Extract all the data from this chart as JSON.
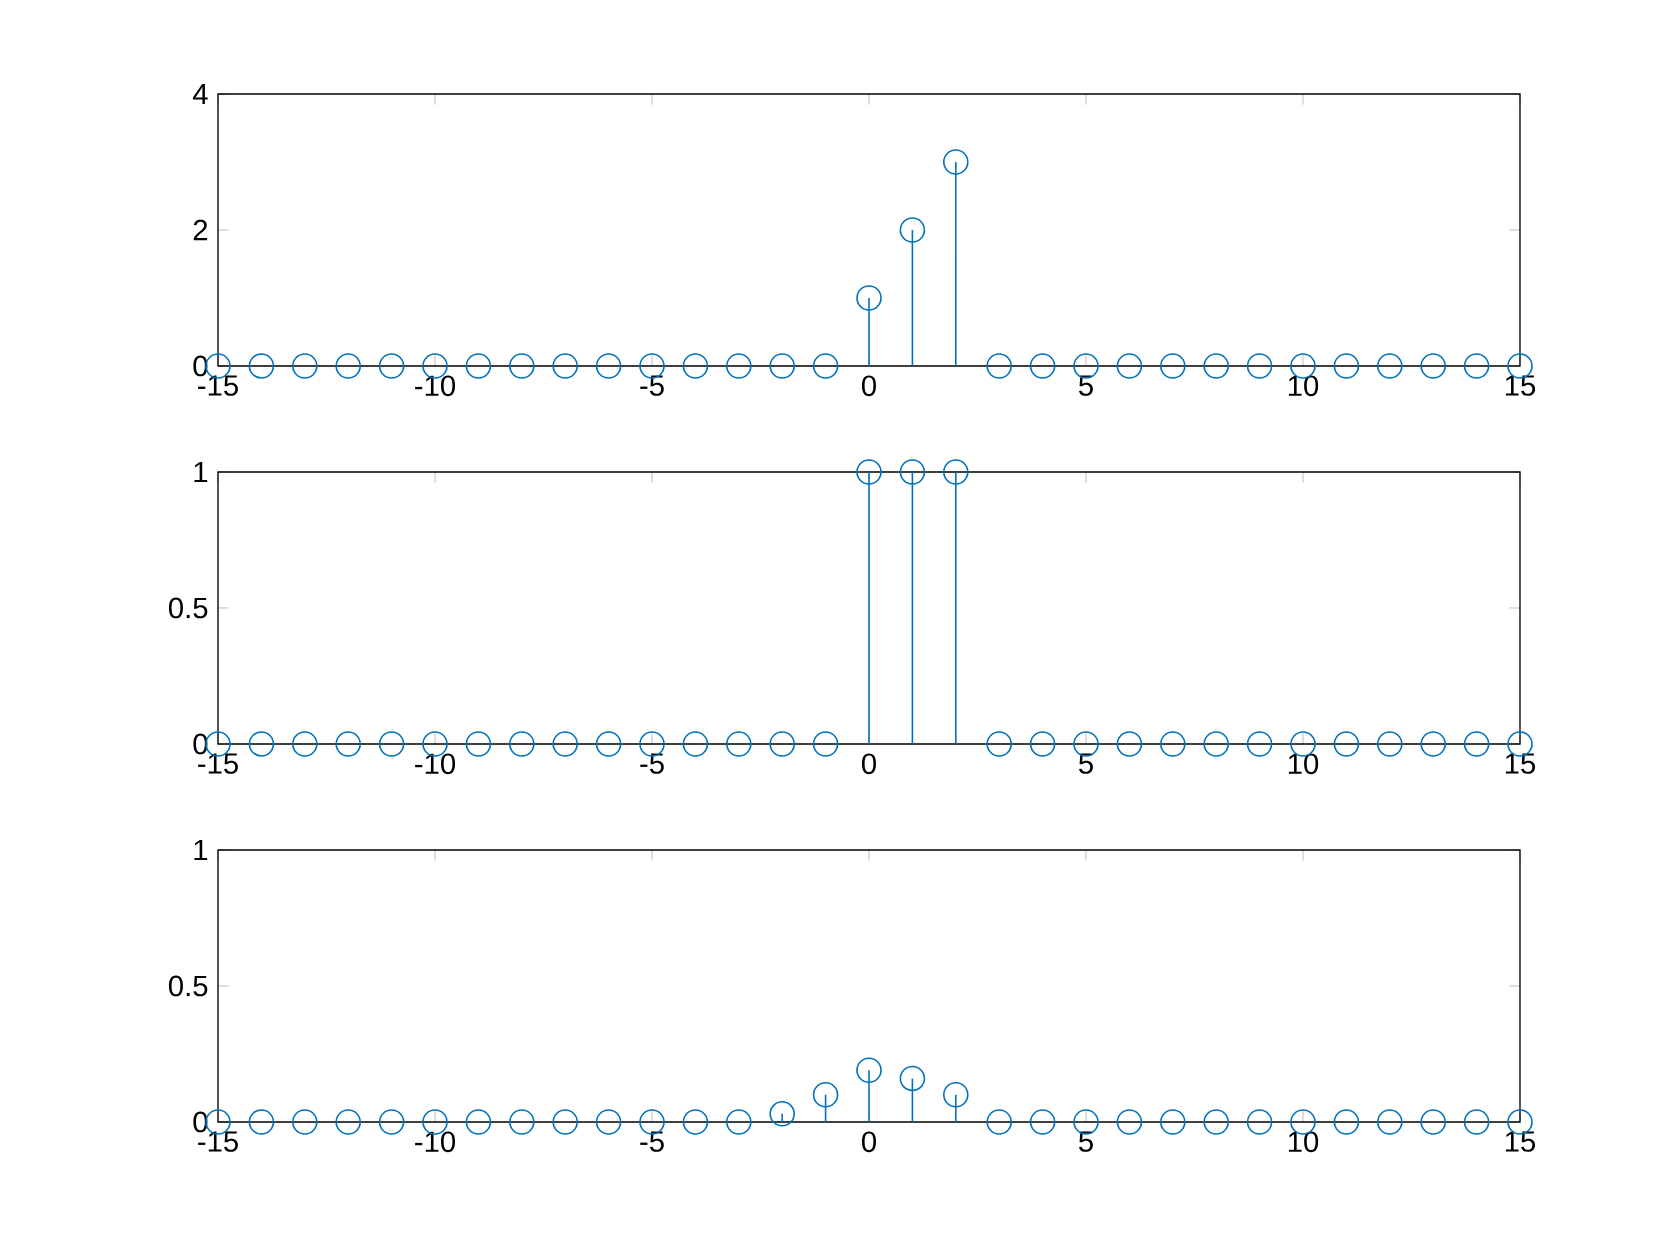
{
  "chart_data": [
    {
      "type": "lollipop",
      "x": [
        -15,
        -14,
        -13,
        -12,
        -11,
        -10,
        -9,
        -8,
        -7,
        -6,
        -5,
        -4,
        -3,
        -2,
        -1,
        0,
        1,
        2,
        3,
        4,
        5,
        6,
        7,
        8,
        9,
        10,
        11,
        12,
        13,
        14,
        15
      ],
      "values": [
        0,
        0,
        0,
        0,
        0,
        0,
        0,
        0,
        0,
        0,
        0,
        0,
        0,
        0,
        0,
        1,
        2,
        3,
        0,
        0,
        0,
        0,
        0,
        0,
        0,
        0,
        0,
        0,
        0,
        0,
        0
      ],
      "color": "#0072bd",
      "marker": "circle",
      "xlim": [
        -15,
        15
      ],
      "ylim": [
        0,
        4
      ],
      "xticks": [
        -15,
        -10,
        -5,
        0,
        5,
        10,
        15
      ],
      "yticks": [
        0,
        2,
        4
      ]
    },
    {
      "type": "lollipop",
      "x": [
        -15,
        -14,
        -13,
        -12,
        -11,
        -10,
        -9,
        -8,
        -7,
        -6,
        -5,
        -4,
        -3,
        -2,
        -1,
        0,
        1,
        2,
        3,
        4,
        5,
        6,
        7,
        8,
        9,
        10,
        11,
        12,
        13,
        14,
        15
      ],
      "values": [
        0,
        0,
        0,
        0,
        0,
        0,
        0,
        0,
        0,
        0,
        0,
        0,
        0,
        0,
        0,
        1,
        1,
        1,
        0,
        0,
        0,
        0,
        0,
        0,
        0,
        0,
        0,
        0,
        0,
        0,
        0
      ],
      "color": "#0072bd",
      "marker": "circle",
      "xlim": [
        -15,
        15
      ],
      "ylim": [
        0,
        1
      ],
      "xticks": [
        -15,
        -10,
        -5,
        0,
        5,
        10,
        15
      ],
      "yticks": [
        0,
        0.5,
        1
      ]
    },
    {
      "type": "lollipop",
      "x": [
        -15,
        -14,
        -13,
        -12,
        -11,
        -10,
        -9,
        -8,
        -7,
        -6,
        -5,
        -4,
        -3,
        -2,
        -1,
        0,
        1,
        2,
        3,
        4,
        5,
        6,
        7,
        8,
        9,
        10,
        11,
        12,
        13,
        14,
        15
      ],
      "values": [
        0,
        0,
        0,
        0,
        0,
        0,
        0,
        0,
        0,
        0,
        0,
        0,
        0,
        0.03,
        0.1,
        0.19,
        0.16,
        0.1,
        0,
        0,
        0,
        0,
        0,
        0,
        0,
        0,
        0,
        0,
        0,
        0,
        0
      ],
      "color": "#0072bd",
      "marker": "circle",
      "xlim": [
        -15,
        15
      ],
      "ylim": [
        0,
        1
      ],
      "xticks": [
        -15,
        -10,
        -5,
        0,
        5,
        10,
        15
      ],
      "yticks": [
        0,
        0.5,
        1
      ]
    }
  ]
}
